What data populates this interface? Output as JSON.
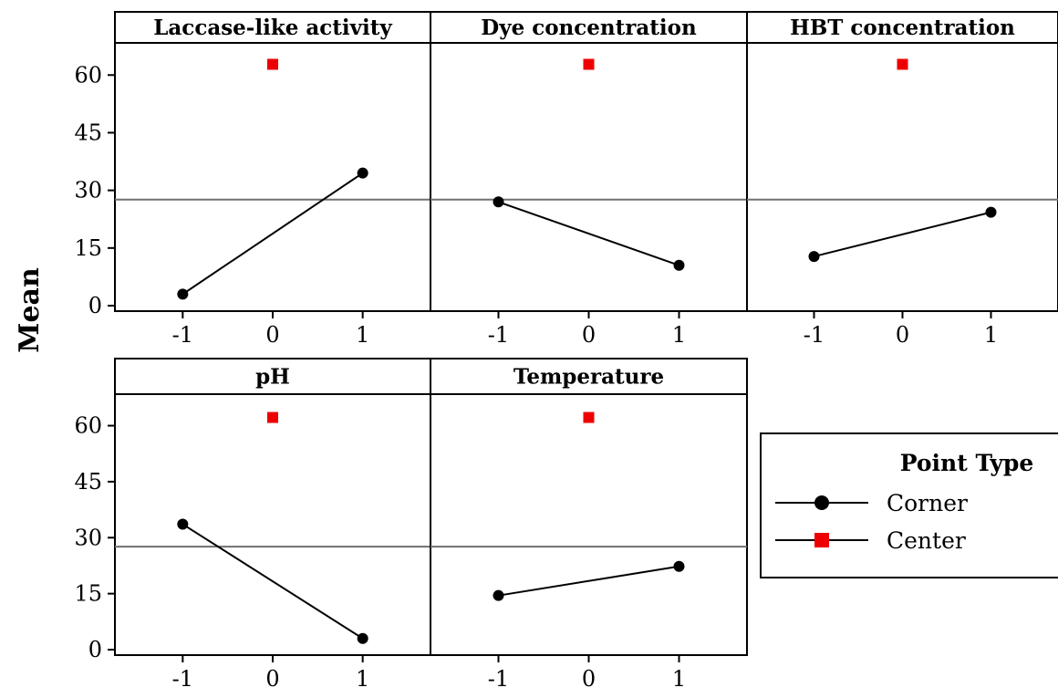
{
  "chart_data": {
    "type": "line",
    "ylabel": "Mean",
    "ylim": [
      0,
      66
    ],
    "yticks": [
      0,
      15,
      30,
      45,
      60
    ],
    "xticks": [
      -1,
      0,
      1
    ],
    "xlim": [
      -1.5,
      1.5
    ],
    "grand_mean": 27.6,
    "panels": [
      {
        "title": "Laccase-like activity",
        "corner": [
          {
            "x": -1,
            "y": 3
          },
          {
            "x": 1,
            "y": 34.5
          }
        ],
        "center": {
          "x": 0,
          "y": 62.8
        }
      },
      {
        "title": "Dye concentration",
        "corner": [
          {
            "x": -1,
            "y": 27
          },
          {
            "x": 1,
            "y": 10.5
          }
        ],
        "center": {
          "x": 0,
          "y": 62.8
        }
      },
      {
        "title": "HBT concentration",
        "corner": [
          {
            "x": -1,
            "y": 12.8
          },
          {
            "x": 1,
            "y": 24.3
          }
        ],
        "center": {
          "x": 0,
          "y": 62.8
        }
      },
      {
        "title": "pH",
        "corner": [
          {
            "x": -1,
            "y": 33.6
          },
          {
            "x": 1,
            "y": 3
          }
        ],
        "center": {
          "x": 0,
          "y": 62.2
        }
      },
      {
        "title": "Temperature",
        "corner": [
          {
            "x": -1,
            "y": 14.5
          },
          {
            "x": 1,
            "y": 22.3
          }
        ],
        "center": {
          "x": 0,
          "y": 62.2
        }
      }
    ],
    "legend": {
      "title": "Point Type",
      "placement": "right",
      "items": [
        {
          "label": "Corner",
          "marker": "circle",
          "color": "#000000"
        },
        {
          "label": "Center",
          "marker": "square",
          "color": "#ee0000"
        }
      ]
    },
    "colors": {
      "corner": "#000000",
      "center": "#ee0000",
      "mean_line": "#707070"
    }
  }
}
